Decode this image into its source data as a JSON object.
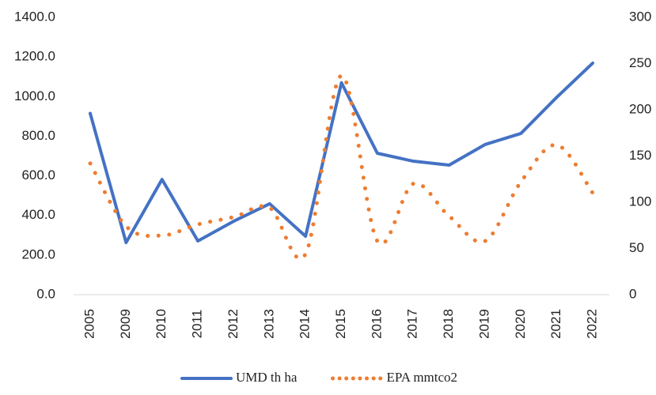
{
  "chart_data": {
    "type": "line",
    "categories": [
      "2005",
      "2009",
      "2010",
      "2011",
      "2012",
      "2013",
      "2014",
      "2015",
      "2016",
      "2017",
      "2018",
      "2019",
      "2020",
      "2021",
      "2022"
    ],
    "series": [
      {
        "name": "UMD th ha",
        "color": "#4472c4",
        "style": "solid",
        "values": [
          915,
          263,
          582,
          271,
          371,
          459,
          295,
          1070,
          714,
          674,
          654,
          758,
          814,
          997,
          1169
        ]
      },
      {
        "name": "EPA mmtco2",
        "color": "#ed7d31",
        "style": "dotted",
        "axis": "y2",
        "values": [
          142,
          74,
          64,
          76,
          84,
          94,
          44,
          237,
          58,
          120,
          85,
          58,
          122,
          162,
          110
        ]
      }
    ],
    "ylim": [
      0,
      1400
    ],
    "yticks": [
      {
        "value": 0,
        "label": "0.0"
      },
      {
        "value": 200,
        "label": "200.0"
      },
      {
        "value": 400,
        "label": "400.0"
      },
      {
        "value": 600,
        "label": "600.0"
      },
      {
        "value": 800,
        "label": "800.0"
      },
      {
        "value": 1000,
        "label": "1000.0"
      },
      {
        "value": 1200,
        "label": "1200.0"
      },
      {
        "value": 1400,
        "label": "1400.0"
      }
    ],
    "y2lim": [
      0,
      300
    ],
    "y2ticks": [
      0,
      50,
      100,
      150,
      200,
      250,
      300
    ],
    "grid": false,
    "legend": "bottom"
  }
}
